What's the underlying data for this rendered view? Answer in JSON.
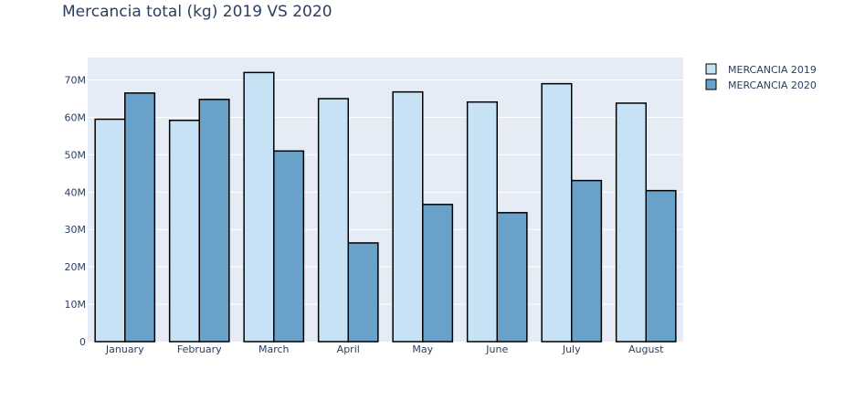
{
  "chart_data": {
    "type": "bar",
    "title": "Mercancia total (kg) 2019 VS 2020",
    "xlabel": "",
    "ylabel": "",
    "categories": [
      "January",
      "February",
      "March",
      "April",
      "May",
      "June",
      "July",
      "August"
    ],
    "series": [
      {
        "name": "MERCANCIA 2019",
        "color": "#c6e2f4",
        "values": [
          59.5,
          59.2,
          72.0,
          65.0,
          66.8,
          64.1,
          69.0,
          63.8
        ]
      },
      {
        "name": "MERCANCIA 2020",
        "color": "#69a1c8",
        "values": [
          66.5,
          64.8,
          51.0,
          26.4,
          36.7,
          34.5,
          43.1,
          40.4
        ]
      }
    ],
    "ylim": [
      0,
      76
    ],
    "yticks": [
      0,
      10,
      20,
      30,
      40,
      50,
      60,
      70
    ],
    "ytick_labels": [
      "0",
      "10M",
      "20M",
      "30M",
      "40M",
      "50M",
      "60M",
      "70M"
    ],
    "y_unit": "millions of kg",
    "grid": true,
    "legend_position": "top-right",
    "plot_bg": "#e5ecf6",
    "bar_outline": "#000000"
  }
}
